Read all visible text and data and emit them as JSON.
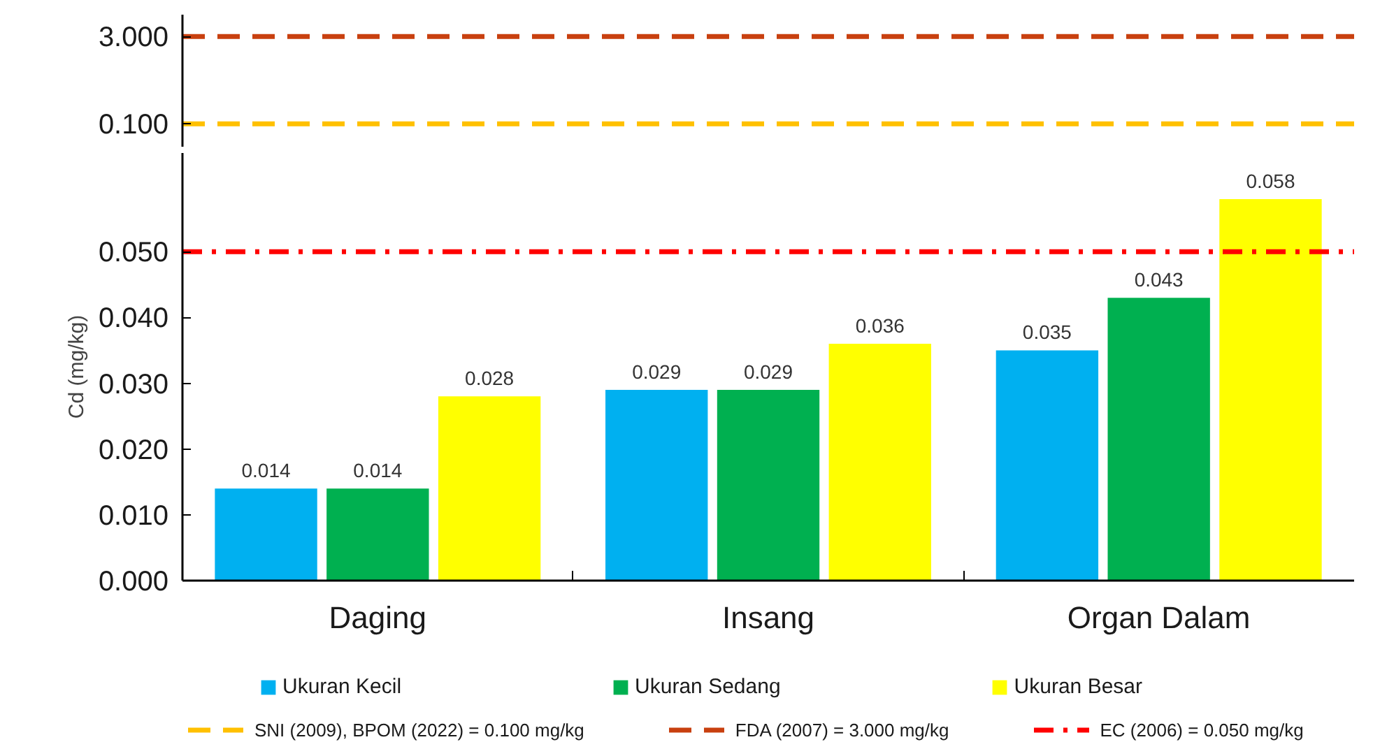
{
  "chart_data": [
    {
      "type": "line",
      "categories": [
        null,
        null,
        null
      ],
      "tick_labels": "y",
      "log": true,
      "ylim": [
        0.04,
        7
      ],
      "yticks": [
        {
          "value": 0.1,
          "label": "0.100"
        },
        {
          "value": 3,
          "label": "3.000"
        }
      ],
      "ref_lines": [
        {
          "axis": "y",
          "value": 0.1,
          "label": "SNI (2009), BPOM (2022) = 0.100 mg/kg",
          "color": "#ffc000",
          "line_style": "dashed"
        },
        {
          "axis": "y",
          "value": 3,
          "label": "FDA (2007) = 3.000 mg/kg",
          "color": "#c8400f",
          "line_style": "dashed"
        }
      ]
    },
    {
      "type": "bar",
      "categories": [
        "Daging",
        "Insang",
        "Organ Dalam"
      ],
      "ylabel": "Cd (mg/kg)",
      "ylim": [
        0,
        0.065
      ],
      "yticks": [
        {
          "value": 0,
          "label": "0.000"
        },
        {
          "value": 0.01,
          "label": "0.010"
        },
        {
          "value": 0.02,
          "label": "0.020"
        },
        {
          "value": 0.03,
          "label": "0.030"
        },
        {
          "value": 0.04,
          "label": "0.040"
        },
        {
          "value": 0.05,
          "label": "0.050"
        }
      ],
      "series": [
        {
          "name": "Ukuran Kecil",
          "color": "#00b0f0",
          "values": [
            0.014,
            0.029,
            0.035
          ]
        },
        {
          "name": "Ukuran Sedang",
          "color": "#00b050",
          "values": [
            0.014,
            0.029,
            0.043
          ]
        },
        {
          "name": "Ukuran Besar",
          "color": "#ffff00",
          "values": [
            0.028,
            0.036,
            0.058
          ]
        }
      ],
      "ref_lines": [
        {
          "axis": "y",
          "value": 0.05,
          "label": "EC (2006) = 0.050 mg/kg",
          "color": "#ff0000",
          "line_style": "dashdot"
        }
      ],
      "data_labels": true,
      "legend": "bottom"
    }
  ]
}
